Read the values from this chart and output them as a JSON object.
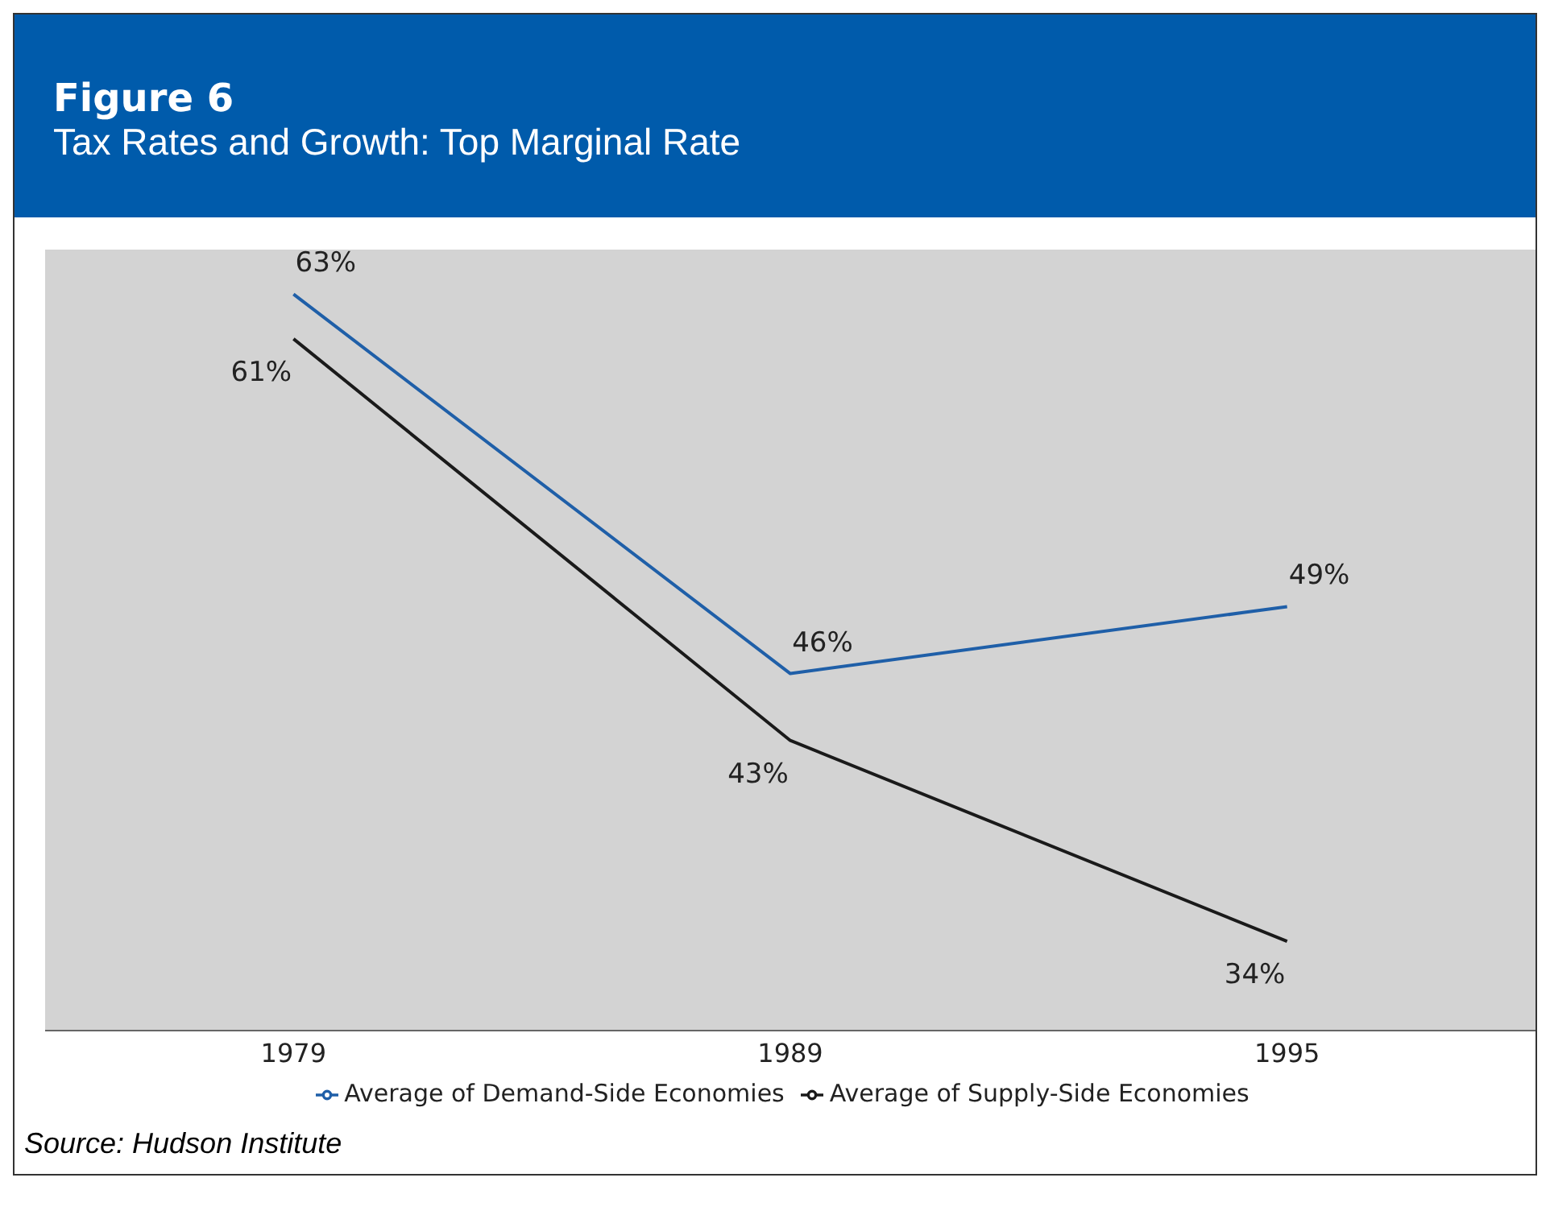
{
  "chart_data": {
    "type": "line",
    "title": "Figure 6",
    "subtitle": "Tax Rates and Growth: Top Marginal Rate",
    "categories": [
      "1979",
      "1989",
      "1995"
    ],
    "ylim": [
      30,
      65
    ],
    "tick_labels": "x",
    "grid": false,
    "legend": "bottom",
    "marker": "none",
    "line_style": "solid",
    "series": [
      {
        "name": "Average of Demand-Side Economies",
        "color": "#1f5fa8",
        "values": [
          63,
          46,
          49
        ],
        "value_labels": [
          "63%",
          "46%",
          "49%"
        ]
      },
      {
        "name": "Average of Supply-Side Economies",
        "color": "#1a1a1a",
        "values": [
          61,
          43,
          34
        ],
        "value_labels": [
          "61%",
          "43%",
          "34%"
        ]
      }
    ],
    "annotations": [
      "Source: Hudson Institute"
    ]
  }
}
